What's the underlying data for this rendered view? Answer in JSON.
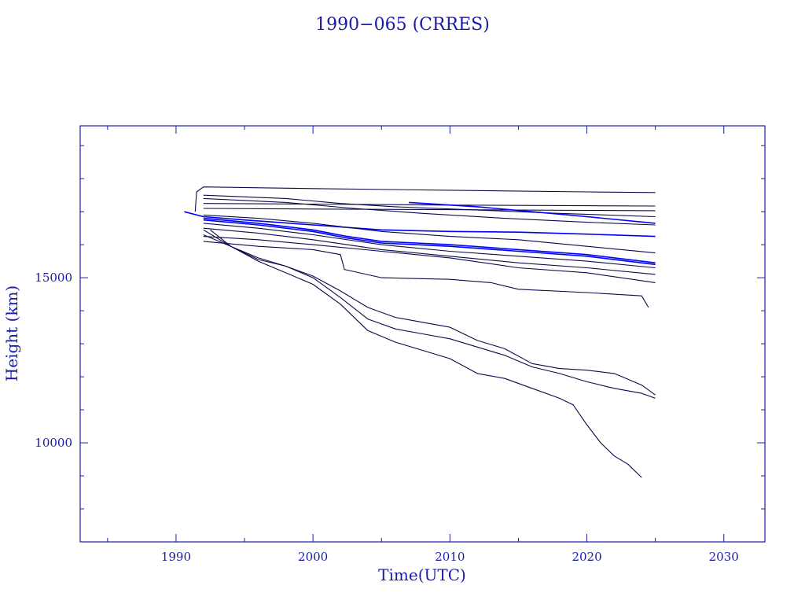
{
  "chart_data": {
    "type": "line",
    "title": "1990−065 (CRRES)",
    "xlabel": "Time(UTC)",
    "ylabel": "Height (km)",
    "xlim": [
      1983,
      2033
    ],
    "ylim": [
      7000,
      19600
    ],
    "x_ticks": [
      1990,
      2000,
      2010,
      2020,
      2030
    ],
    "x_tick_labels": [
      "1990",
      "2000",
      "2010",
      "2020",
      "2030"
    ],
    "y_ticks": [
      10000,
      15000
    ],
    "y_tick_labels": [
      "10000",
      "15000"
    ],
    "grid": false,
    "legend": "none",
    "colors": {
      "axis": "#1a1aa6",
      "dark_series": "#0a0a4a",
      "bright_series": "#0000ff"
    },
    "series": [
      {
        "color": "#0a0a4a",
        "x": [
          1991.4,
          1991.5,
          1992.0,
          2000,
          2010,
          2020,
          2025.0
        ],
        "y": [
          17000,
          17600,
          17750,
          17700,
          17650,
          17600,
          17580
        ]
      },
      {
        "color": "#0a0a4a",
        "x": [
          1992.0,
          2000,
          2010,
          2020,
          2025.0
        ],
        "y": [
          17250,
          17230,
          17200,
          17180,
          17170
        ]
      },
      {
        "color": "#0a0a4a",
        "x": [
          1992.0,
          2000,
          2010,
          2020,
          2025.0
        ],
        "y": [
          17100,
          17080,
          17060,
          17040,
          17030
        ]
      },
      {
        "color": "#0a0a4a",
        "x": [
          1992.0,
          1998,
          2002,
          2006,
          2012,
          2018,
          2025.0
        ],
        "y": [
          17500,
          17400,
          17250,
          17150,
          17050,
          16950,
          16850
        ]
      },
      {
        "color": "#0000ff",
        "x": [
          2007.0,
          2012,
          2016,
          2020,
          2025.0
        ],
        "y": [
          17280,
          17150,
          17000,
          16850,
          16650
        ]
      },
      {
        "color": "#0a0a4a",
        "x": [
          1992.0,
          1998,
          2003,
          2008,
          2014,
          2020,
          2025.0
        ],
        "y": [
          17400,
          17280,
          17100,
          16950,
          16800,
          16680,
          16600
        ]
      },
      {
        "color": "#0000ff",
        "x": [
          1990.6,
          1992,
          1995,
          2000,
          2005,
          2010,
          2015,
          2020,
          2025.0
        ],
        "y": [
          17000,
          16850,
          16750,
          16600,
          16450,
          16400,
          16380,
          16320,
          16250
        ]
      },
      {
        "color": "#0a0a4a",
        "x": [
          1992.0,
          1996,
          2000,
          2005,
          2010,
          2015,
          2020,
          2025.0
        ],
        "y": [
          16900,
          16800,
          16650,
          16400,
          16250,
          16150,
          15950,
          15750
        ]
      },
      {
        "color": "#0000ff",
        "x": [
          1992.0,
          1996,
          2000,
          2002.5,
          2005,
          2010,
          2015,
          2020,
          2025.0
        ],
        "y": [
          16800,
          16650,
          16450,
          16250,
          16100,
          16000,
          15850,
          15700,
          15450
        ]
      },
      {
        "color": "#0000ff",
        "x": [
          1992.0,
          1996,
          2000,
          2002.5,
          2005,
          2010,
          2015,
          2020,
          2025.0
        ],
        "y": [
          16750,
          16600,
          16400,
          16200,
          16050,
          15950,
          15800,
          15650,
          15400
        ]
      },
      {
        "color": "#0a0a4a",
        "x": [
          1992.0,
          1996,
          2000,
          2005,
          2010,
          2015,
          2020,
          2025.0
        ],
        "y": [
          16650,
          16500,
          16300,
          16000,
          15800,
          15650,
          15500,
          15300
        ]
      },
      {
        "color": "#0a0a4a",
        "x": [
          1992.0,
          1996,
          2000,
          2005,
          2010,
          2015,
          2020,
          2025.0
        ],
        "y": [
          16500,
          16350,
          16150,
          15850,
          15650,
          15450,
          15300,
          15100
        ]
      },
      {
        "color": "#0a0a4a",
        "x": [
          1992.0,
          1996,
          2000,
          2005,
          2010,
          2015,
          2020,
          2025.0
        ],
        "y": [
          16250,
          16150,
          16000,
          15800,
          15600,
          15300,
          15150,
          14850
        ]
      },
      {
        "color": "#0a0a4a",
        "x": [
          1992.0,
          1996,
          2000,
          2002,
          2002.3,
          2005,
          2010,
          2013,
          2015,
          2020,
          2024.0,
          2024.5
        ],
        "y": [
          16100,
          15950,
          15850,
          15700,
          15250,
          15000,
          14950,
          14850,
          14650,
          14550,
          14450,
          14100
        ]
      },
      {
        "color": "#0a0a4a",
        "x": [
          1992.0,
          1994,
          1996,
          1998,
          2000,
          2002,
          2004,
          2006,
          2008,
          2010,
          2012,
          2014,
          2016,
          2018,
          2020,
          2022,
          2024,
          2025.0
        ],
        "y": [
          16300,
          15950,
          15550,
          15350,
          15050,
          14600,
          14100,
          13800,
          13650,
          13500,
          13100,
          12850,
          12400,
          12250,
          12200,
          12100,
          11750,
          11450
        ]
      },
      {
        "color": "#0a0a4a",
        "x": [
          1992.0,
          1994,
          1996,
          1998,
          2000,
          2002,
          2004,
          2006,
          2008,
          2010,
          2012,
          2014,
          2016,
          2018,
          2020,
          2022,
          2024,
          2025.0
        ],
        "y": [
          16450,
          15950,
          15600,
          15350,
          15000,
          14400,
          13750,
          13450,
          13300,
          13150,
          12900,
          12650,
          12300,
          12100,
          11850,
          11650,
          11500,
          11350
        ]
      },
      {
        "color": "#0a0a4a",
        "x": [
          1992.5,
          1994,
          1996,
          1998,
          2000,
          2002,
          2004,
          2006,
          2008,
          2010,
          2012,
          2014,
          2016,
          2018,
          2019,
          2020,
          2021,
          2022,
          2023,
          2024.0
        ],
        "y": [
          16450,
          15950,
          15500,
          15150,
          14800,
          14200,
          13400,
          13050,
          12800,
          12550,
          12100,
          11950,
          11650,
          11350,
          11150,
          10550,
          10000,
          9600,
          9350,
          8950
        ]
      }
    ]
  }
}
